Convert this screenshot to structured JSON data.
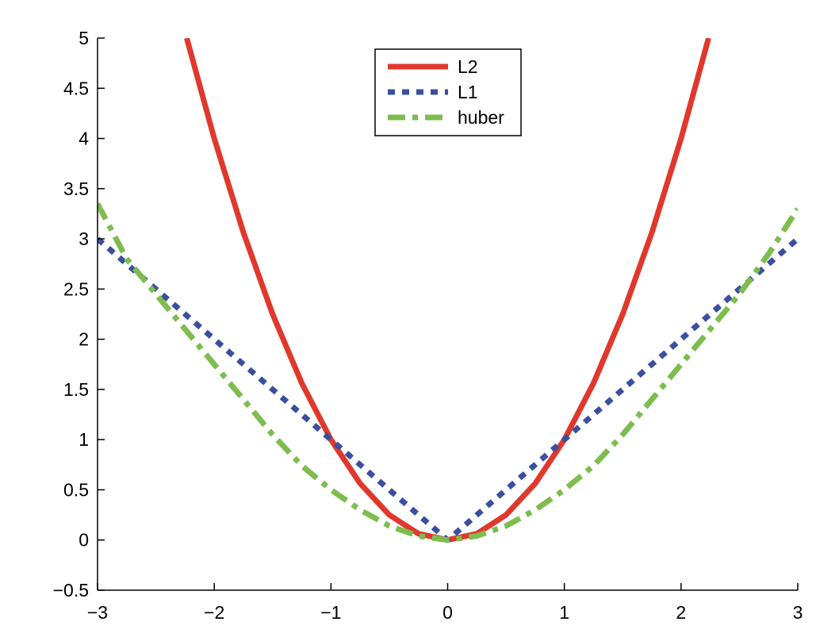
{
  "chart_data": {
    "type": "line",
    "title": "",
    "xlabel": "",
    "ylabel": "",
    "xlim": [
      -3,
      3
    ],
    "ylim": [
      -0.5,
      5
    ],
    "xticks": [
      -3,
      -2,
      -1,
      0,
      1,
      2,
      3
    ],
    "xtick_labels": [
      "−3",
      "−2",
      "−1",
      "0",
      "1",
      "2",
      "3"
    ],
    "yticks": [
      -0.5,
      0,
      0.5,
      1,
      1.5,
      2,
      2.5,
      3,
      3.5,
      4,
      4.5,
      5
    ],
    "ytick_labels": [
      "−0.5",
      "0",
      "0.5",
      "1",
      "1.5",
      "2",
      "2.5",
      "3",
      "3.5",
      "4",
      "4.5",
      "5"
    ],
    "grid": false,
    "legend_position": "top-center",
    "series": [
      {
        "name": "L2",
        "color": "#e0382c",
        "style": "solid",
        "x": [
          -2.236,
          -2.0,
          -1.75,
          -1.5,
          -1.25,
          -1.0,
          -0.75,
          -0.5,
          -0.25,
          0.0,
          0.25,
          0.5,
          0.75,
          1.0,
          1.25,
          1.5,
          1.75,
          2.0,
          2.236
        ],
        "y": [
          5.0,
          4.0,
          3.0625,
          2.25,
          1.5625,
          1.0,
          0.5625,
          0.25,
          0.0625,
          0.0,
          0.0625,
          0.25,
          0.5625,
          1.0,
          1.5625,
          2.25,
          3.0625,
          4.0,
          5.0
        ]
      },
      {
        "name": "L1",
        "color": "#3a4fa0",
        "style": "dotted",
        "x": [
          -3.0,
          -2.0,
          -1.0,
          0.0,
          1.0,
          2.0,
          3.0
        ],
        "y": [
          3.0,
          2.0,
          1.0,
          0.0,
          1.0,
          2.0,
          3.0
        ]
      },
      {
        "name": "huber",
        "color": "#7dbd4f",
        "style": "dashdot",
        "x": [
          -3.0,
          -2.75,
          -2.5,
          -2.25,
          -2.0,
          -1.75,
          -1.5,
          -1.25,
          -1.0,
          -0.75,
          -0.5,
          -0.25,
          0.0,
          0.25,
          0.5,
          0.75,
          1.0,
          1.25,
          1.5,
          1.75,
          2.0,
          2.25,
          2.5,
          2.75,
          3.0
        ],
        "y": [
          3.35,
          2.8,
          2.45,
          2.1,
          1.75,
          1.4,
          1.05,
          0.74,
          0.5,
          0.3,
          0.14,
          0.04,
          0.0,
          0.04,
          0.14,
          0.3,
          0.5,
          0.74,
          1.05,
          1.4,
          1.75,
          2.1,
          2.45,
          2.85,
          3.3
        ]
      }
    ]
  }
}
